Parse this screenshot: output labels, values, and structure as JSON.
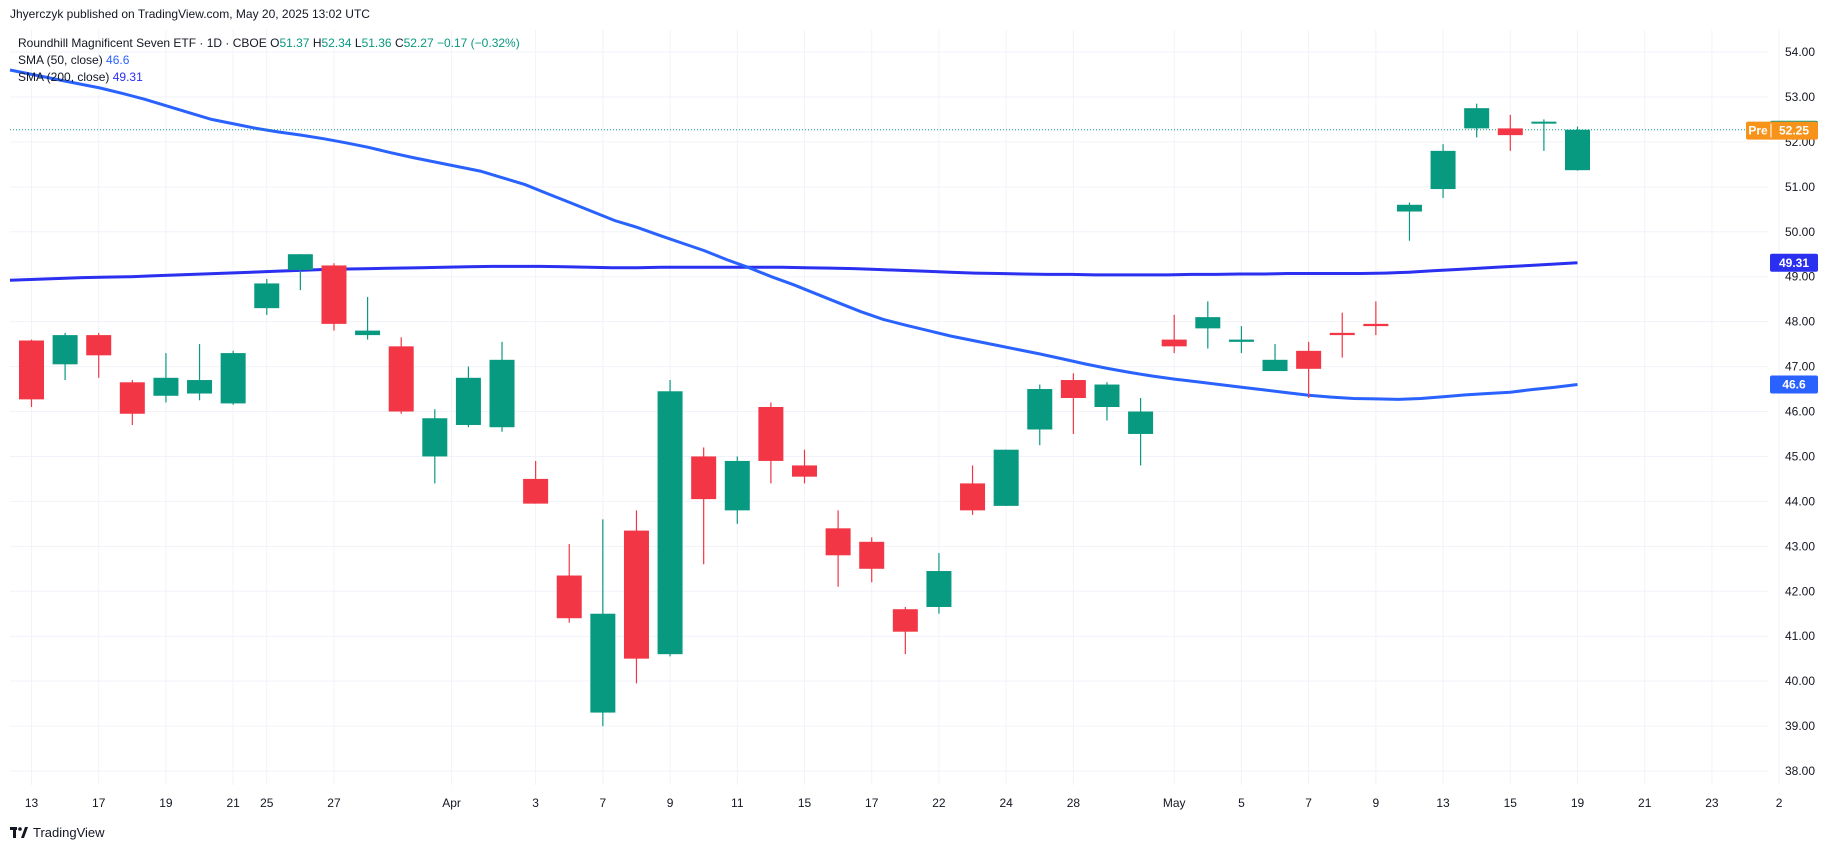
{
  "header": {
    "published": "Jhyerczyk published on TradingView.com, May 20, 2025 13:02 UTC"
  },
  "legend": {
    "symbol": "Roundhill Magnificent Seven ETF · 1D · CBOE",
    "o_label": "O",
    "o_value": "51.37",
    "h_label": "H",
    "h_value": "52.34",
    "l_label": "L",
    "l_value": "51.36",
    "c_label": "C",
    "c_value": "52.27",
    "change": "−0.17 (−0.32%)",
    "sma50_label": "SMA (50, close)",
    "sma50_value": "46.6",
    "sma200_label": "SMA (200, close)",
    "sma200_value": "49.31"
  },
  "footer": {
    "brand": "TradingView"
  },
  "colors": {
    "up": "#089981",
    "down": "#f23645",
    "sma50": "#2962ff",
    "sma200": "#2a2ff0",
    "pre": "#f7931a",
    "grid": "#f0f3fa",
    "text": "#131722"
  },
  "chart_data": {
    "type": "candlestick",
    "title": "Roundhill Magnificent Seven ETF · 1D · CBOE",
    "ylim": [
      37.5,
      54.3
    ],
    "y_ticks": [
      "54.00",
      "53.00",
      "52.00",
      "51.00",
      "50.00",
      "49.00",
      "48.00",
      "47.00",
      "46.00",
      "45.00",
      "44.00",
      "43.00",
      "42.00",
      "41.00",
      "40.00",
      "39.00",
      "38.00"
    ],
    "x_ticks": [
      "13",
      "17",
      "19",
      "21",
      "25",
      "27",
      "Apr",
      "3",
      "7",
      "9",
      "11",
      "15",
      "17",
      "22",
      "24",
      "28",
      "May",
      "5",
      "7",
      "9",
      "13",
      "15",
      "19",
      "21",
      "23",
      "2"
    ],
    "candles": [
      {
        "date": "Mar 13",
        "o": 47.58,
        "h": 47.6,
        "l": 46.1,
        "c": 46.27
      },
      {
        "date": "Mar 14",
        "o": 47.05,
        "h": 47.75,
        "l": 46.7,
        "c": 47.7
      },
      {
        "date": "Mar 17",
        "o": 47.7,
        "h": 47.75,
        "l": 46.75,
        "c": 47.25
      },
      {
        "date": "Mar 18",
        "o": 46.65,
        "h": 46.7,
        "l": 45.7,
        "c": 45.95
      },
      {
        "date": "Mar 19",
        "o": 46.35,
        "h": 47.3,
        "l": 46.2,
        "c": 46.75
      },
      {
        "date": "Mar 20",
        "o": 46.4,
        "h": 47.5,
        "l": 46.25,
        "c": 46.7
      },
      {
        "date": "Mar 21",
        "o": 46.18,
        "h": 47.35,
        "l": 46.15,
        "c": 47.3
      },
      {
        "date": "Mar 24",
        "o": 48.3,
        "h": 48.95,
        "l": 48.15,
        "c": 48.85
      },
      {
        "date": "Mar 25",
        "o": 49.15,
        "h": 49.5,
        "l": 48.7,
        "c": 49.5
      },
      {
        "date": "Mar 26",
        "o": 49.25,
        "h": 49.3,
        "l": 47.8,
        "c": 47.95
      },
      {
        "date": "Mar 27",
        "o": 47.7,
        "h": 48.55,
        "l": 47.6,
        "c": 47.8
      },
      {
        "date": "Mar 28",
        "o": 47.45,
        "h": 47.65,
        "l": 45.95,
        "c": 46.0
      },
      {
        "date": "Mar 31",
        "o": 45.0,
        "h": 46.05,
        "l": 44.4,
        "c": 45.85
      },
      {
        "date": "Apr 1",
        "o": 45.7,
        "h": 47.0,
        "l": 45.65,
        "c": 46.75
      },
      {
        "date": "Apr 2",
        "o": 45.65,
        "h": 47.55,
        "l": 45.55,
        "c": 47.15
      },
      {
        "date": "Apr 3",
        "o": 44.5,
        "h": 44.9,
        "l": 43.95,
        "c": 43.95
      },
      {
        "date": "Apr 4",
        "o": 42.35,
        "h": 43.05,
        "l": 41.3,
        "c": 41.4
      },
      {
        "date": "Apr 7",
        "o": 39.3,
        "h": 43.6,
        "l": 39.0,
        "c": 41.5
      },
      {
        "date": "Apr 8",
        "o": 43.35,
        "h": 43.8,
        "l": 39.95,
        "c": 40.5
      },
      {
        "date": "Apr 9",
        "o": 40.6,
        "h": 46.7,
        "l": 40.55,
        "c": 46.45
      },
      {
        "date": "Apr 10",
        "o": 45.0,
        "h": 45.2,
        "l": 42.6,
        "c": 44.05
      },
      {
        "date": "Apr 11",
        "o": 43.8,
        "h": 45.0,
        "l": 43.5,
        "c": 44.9
      },
      {
        "date": "Apr 14",
        "o": 46.1,
        "h": 46.2,
        "l": 44.4,
        "c": 44.9
      },
      {
        "date": "Apr 15",
        "o": 44.8,
        "h": 45.15,
        "l": 44.4,
        "c": 44.55
      },
      {
        "date": "Apr 16",
        "o": 43.4,
        "h": 43.8,
        "l": 42.1,
        "c": 42.8
      },
      {
        "date": "Apr 17",
        "o": 43.1,
        "h": 43.2,
        "l": 42.2,
        "c": 42.5
      },
      {
        "date": "Apr 21",
        "o": 41.6,
        "h": 41.65,
        "l": 40.6,
        "c": 41.1
      },
      {
        "date": "Apr 22",
        "o": 41.65,
        "h": 42.85,
        "l": 41.5,
        "c": 42.45
      },
      {
        "date": "Apr 23",
        "o": 44.4,
        "h": 44.8,
        "l": 43.7,
        "c": 43.8
      },
      {
        "date": "Apr 24",
        "o": 43.9,
        "h": 45.15,
        "l": 43.9,
        "c": 45.15
      },
      {
        "date": "Apr 25",
        "o": 45.6,
        "h": 46.6,
        "l": 45.25,
        "c": 46.5
      },
      {
        "date": "Apr 28",
        "o": 46.7,
        "h": 46.85,
        "l": 45.5,
        "c": 46.3
      },
      {
        "date": "Apr 29",
        "o": 46.1,
        "h": 46.65,
        "l": 45.8,
        "c": 46.6
      },
      {
        "date": "Apr 30",
        "o": 45.5,
        "h": 46.3,
        "l": 44.8,
        "c": 46.0
      },
      {
        "date": "May 1",
        "o": 47.6,
        "h": 48.15,
        "l": 47.3,
        "c": 47.45
      },
      {
        "date": "May 2",
        "o": 47.85,
        "h": 48.45,
        "l": 47.4,
        "c": 48.1
      },
      {
        "date": "May 5",
        "o": 47.55,
        "h": 47.9,
        "l": 47.3,
        "c": 47.6
      },
      {
        "date": "May 6",
        "o": 46.9,
        "h": 47.5,
        "l": 46.9,
        "c": 47.15
      },
      {
        "date": "May 7",
        "o": 47.35,
        "h": 47.55,
        "l": 46.3,
        "c": 46.95
      },
      {
        "date": "May 8",
        "o": 47.75,
        "h": 48.2,
        "l": 47.2,
        "c": 47.7
      },
      {
        "date": "May 9",
        "o": 47.95,
        "h": 48.45,
        "l": 47.7,
        "c": 47.9
      },
      {
        "date": "May 12",
        "o": 50.45,
        "h": 50.65,
        "l": 49.8,
        "c": 50.6
      },
      {
        "date": "May 13",
        "o": 50.95,
        "h": 51.95,
        "l": 50.75,
        "c": 51.8
      },
      {
        "date": "May 14",
        "o": 52.3,
        "h": 52.85,
        "l": 52.1,
        "c": 52.75
      },
      {
        "date": "May 15",
        "o": 52.3,
        "h": 52.6,
        "l": 51.8,
        "c": 52.15
      },
      {
        "date": "May 16",
        "o": 52.45,
        "h": 52.5,
        "l": 51.8,
        "c": 52.45
      },
      {
        "date": "May 19",
        "o": 51.37,
        "h": 52.34,
        "l": 51.36,
        "c": 52.27
      }
    ],
    "sma50": [
      53.6,
      53.5,
      53.4,
      53.3,
      53.2,
      53.08,
      52.95,
      52.8,
      52.65,
      52.5,
      52.4,
      52.3,
      52.22,
      52.15,
      52.07,
      51.98,
      51.88,
      51.76,
      51.65,
      51.55,
      51.45,
      51.35,
      51.2,
      51.05,
      50.85,
      50.65,
      50.45,
      50.25,
      50.1,
      49.92,
      49.75,
      49.58,
      49.38,
      49.2,
      49.0,
      48.82,
      48.62,
      48.42,
      48.22,
      48.05,
      47.92,
      47.8,
      47.68,
      47.58,
      47.48,
      47.38,
      47.28,
      47.17,
      47.06,
      46.96,
      46.87,
      46.79,
      46.72,
      46.66,
      46.6,
      46.54,
      46.48,
      46.42,
      46.36,
      46.32,
      46.29,
      46.28,
      46.27,
      46.29,
      46.33,
      46.37,
      46.4,
      46.43,
      46.49,
      46.54,
      46.6
    ],
    "sma200": [
      48.92,
      48.94,
      48.96,
      48.98,
      48.99,
      49.0,
      49.02,
      49.04,
      49.06,
      49.08,
      49.1,
      49.12,
      49.14,
      49.16,
      49.17,
      49.18,
      49.19,
      49.2,
      49.21,
      49.22,
      49.23,
      49.23,
      49.23,
      49.22,
      49.21,
      49.2,
      49.2,
      49.21,
      49.21,
      49.21,
      49.21,
      49.21,
      49.21,
      49.2,
      49.19,
      49.18,
      49.16,
      49.14,
      49.12,
      49.1,
      49.08,
      49.07,
      49.06,
      49.05,
      49.05,
      49.04,
      49.04,
      49.04,
      49.04,
      49.05,
      49.05,
      49.06,
      49.06,
      49.07,
      49.07,
      49.07,
      49.07,
      49.08,
      49.1,
      49.13,
      49.16,
      49.19,
      49.22,
      49.25,
      49.28,
      49.31
    ],
    "last": {
      "value": "52.27",
      "price": 52.27
    },
    "pre": {
      "label": "Pre",
      "value": "52.25",
      "price": 52.25
    },
    "sma50_tag": {
      "value": "46.6",
      "price": 46.6
    },
    "sma200_tag": {
      "value": "49.31",
      "price": 49.31
    }
  }
}
